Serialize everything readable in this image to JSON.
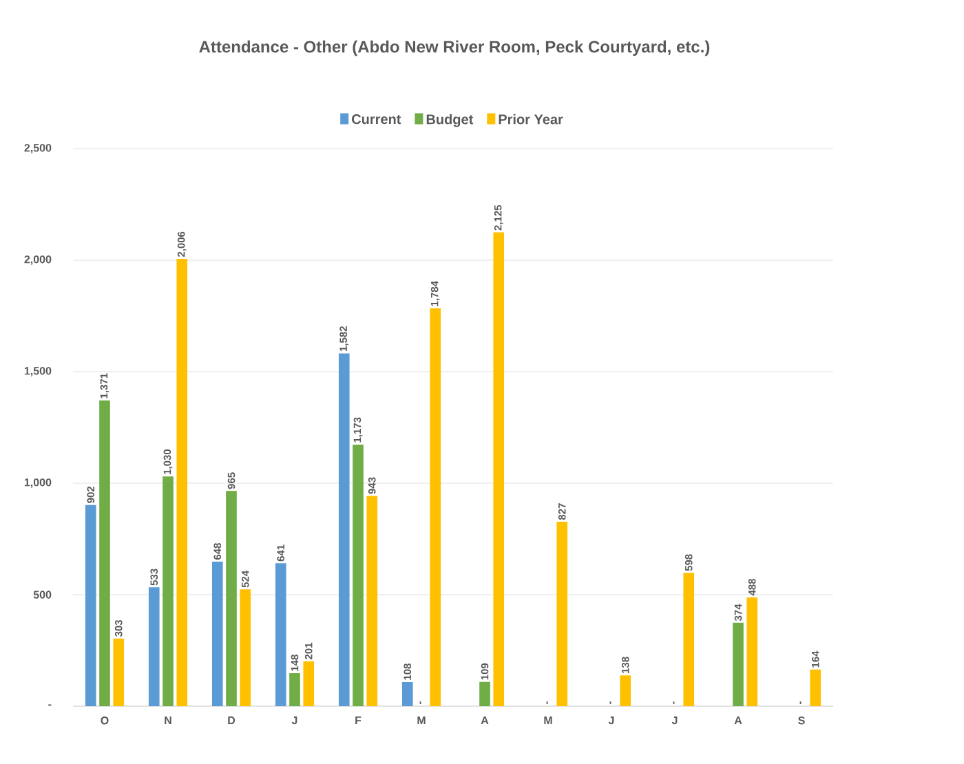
{
  "chart_data": {
    "type": "bar",
    "title": "Attendance - Other (Abdo New River Room, Peck Courtyard, etc.)",
    "categories": [
      "O",
      "N",
      "D",
      "J",
      "F",
      "M",
      "A",
      "M",
      "J",
      "J",
      "A",
      "S"
    ],
    "series": [
      {
        "name": "Current",
        "color": "#5b9bd5",
        "values": [
          902,
          533,
          648,
          641,
          1582,
          108,
          null,
          null,
          null,
          null,
          null,
          null
        ],
        "value_labels": [
          "902",
          "533",
          "648",
          "641",
          "1,582",
          "108",
          null,
          null,
          null,
          null,
          null,
          null
        ]
      },
      {
        "name": "Budget",
        "color": "#70ad47",
        "values": [
          1371,
          1030,
          965,
          148,
          1173,
          0,
          109,
          0,
          0,
          0,
          374,
          0
        ],
        "value_labels": [
          "1,371",
          "1,030",
          "965",
          "148",
          "1,173",
          "-",
          "109",
          "-",
          "-",
          "-",
          "374",
          "-"
        ]
      },
      {
        "name": "Prior Year",
        "color": "#ffc000",
        "values": [
          303,
          2006,
          524,
          201,
          943,
          1784,
          2125,
          827,
          138,
          598,
          488,
          164
        ],
        "value_labels": [
          "303",
          "2,006",
          "524",
          "201",
          "943",
          "1,784",
          "2,125",
          "827",
          "138",
          "598",
          "488",
          "164"
        ]
      }
    ],
    "ylim": [
      0,
      2500
    ],
    "yticks": [
      {
        "value": 0,
        "label": "-"
      },
      {
        "value": 500,
        "label": "500"
      },
      {
        "value": 1000,
        "label": "1,000"
      },
      {
        "value": 1500,
        "label": "1,500"
      },
      {
        "value": 2000,
        "label": "2,000"
      },
      {
        "value": 2500,
        "label": "2,500"
      }
    ],
    "grid": "y",
    "legend": "top"
  }
}
